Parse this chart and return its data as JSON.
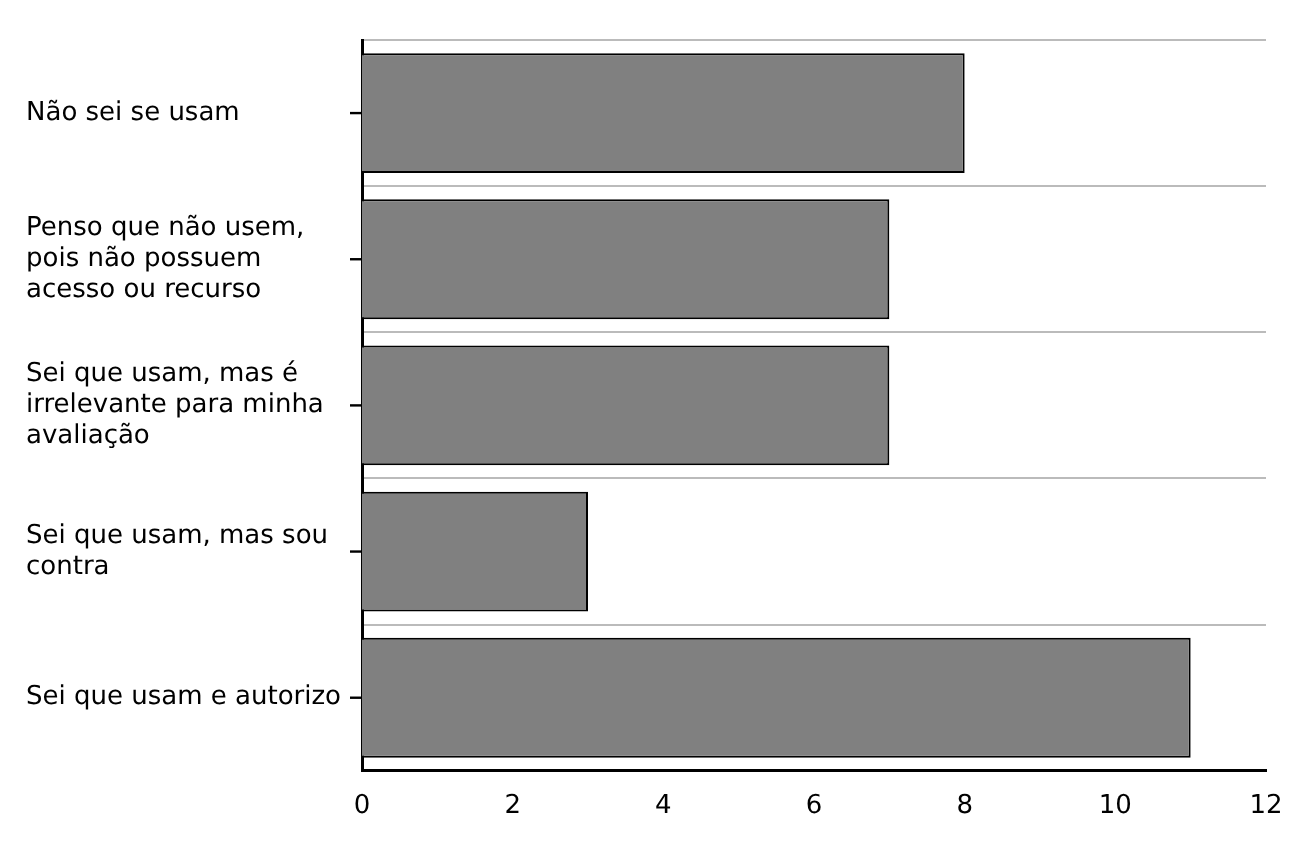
{
  "chart_data": {
    "type": "bar",
    "orientation": "horizontal",
    "categories": [
      "Não sei se usam",
      "Penso que não usem, pois não possuem acesso ou recurso",
      "Sei que usam, mas é irrelevante para minha avaliação",
      "Sei que usam, mas sou contra",
      "Sei que usam e autorizo"
    ],
    "values": [
      8,
      7,
      7,
      3,
      11
    ],
    "color": "#808080",
    "xlim": [
      0,
      12
    ],
    "xticks": [
      0,
      2,
      4,
      6,
      8,
      10,
      12
    ],
    "grid": "y",
    "legend": false
  }
}
